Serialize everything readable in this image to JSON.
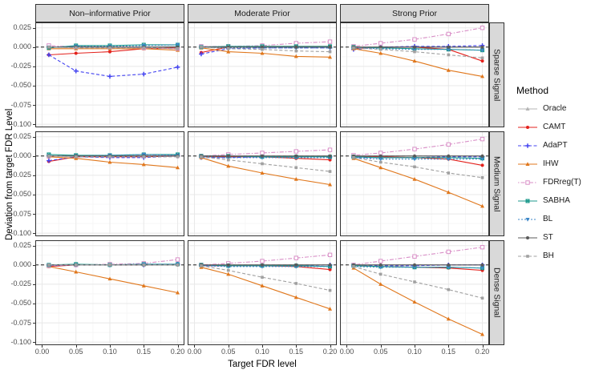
{
  "chart_data": {
    "type": "line",
    "title": "",
    "xlabel": "Target FDR level",
    "ylabel": "Deviation from target FDR Level",
    "legend_title": "Method",
    "legend_position": "right",
    "grid": true,
    "facet_cols": [
      "Non–informative Prior",
      "Moderate Prior",
      "Strong Prior"
    ],
    "facet_rows": [
      "Sparse Signal",
      "Medium Signal",
      "Dense Signal"
    ],
    "x": [
      0.01,
      0.05,
      0.1,
      0.15,
      0.2
    ],
    "xlim": [
      -0.01,
      0.21
    ],
    "ylim": [
      -0.104,
      0.032
    ],
    "x_ticks": {
      "values": [
        0.0,
        0.05,
        0.1,
        0.15,
        0.2
      ],
      "labels": [
        "0.00",
        "0.05",
        "0.10",
        "0.15",
        "0.20"
      ]
    },
    "x_minor_ticks": [
      0.025,
      0.075,
      0.125,
      0.175
    ],
    "y_ticks": {
      "values": [
        0.025,
        0.0,
        -0.025,
        -0.05,
        -0.075,
        -0.1
      ],
      "labels": [
        "0.025",
        "0.000",
        "-0.025",
        "-0.050",
        "-0.075",
        "-0.100"
      ]
    },
    "y_minor_ticks": [
      0.0125,
      -0.0125,
      -0.0375,
      -0.0625,
      -0.0875
    ],
    "reference_line_y": 0,
    "colors": {
      "strip_bg": "#d9d9d9",
      "panel_border": "#333333",
      "grid_major": "#e8e8e8",
      "grid_minor": "#f4f4f4",
      "zero_line": "#000000"
    },
    "methods": [
      {
        "name": "Oracle",
        "color": "#b5b5b5",
        "dash": "",
        "marker": "triangle"
      },
      {
        "name": "CAMT",
        "color": "#e3211c",
        "dash": "",
        "marker": "circle"
      },
      {
        "name": "AdaPT",
        "color": "#4343f0",
        "dash": "4,2.5",
        "marker": "plus"
      },
      {
        "name": "IHW",
        "color": "#e0771c",
        "dash": "",
        "marker": "triangle"
      },
      {
        "name": "FDRreg(T)",
        "color": "#d98fc7",
        "dash": "1.5,2,5,2",
        "marker": "square-open"
      },
      {
        "name": "SABHA",
        "color": "#1d9a8c",
        "dash": "",
        "marker": "square-x"
      },
      {
        "name": "BL",
        "color": "#3c87c8",
        "dash": "2,2",
        "marker": "triangle-down"
      },
      {
        "name": "ST",
        "color": "#595959",
        "dash": "",
        "marker": "circle"
      },
      {
        "name": "BH",
        "color": "#a0a0a0",
        "dash": "4,2.5",
        "marker": "square"
      }
    ],
    "panels": [
      {
        "row": 0,
        "col": 0,
        "series": {
          "Oracle": [
            0.0,
            0.001,
            0.0,
            0.0,
            0.001
          ],
          "CAMT": [
            -0.01,
            -0.008,
            -0.006,
            -0.002,
            -0.001
          ],
          "AdaPT": [
            -0.01,
            -0.031,
            -0.038,
            -0.035,
            -0.026
          ],
          "IHW": [
            -0.002,
            -0.002,
            -0.002,
            -0.002,
            -0.004
          ],
          "FDRreg(T)": [
            0.002,
            0.0,
            0.0,
            -0.001,
            -0.002
          ],
          "SABHA": [
            -0.001,
            0.002,
            0.002,
            0.003,
            0.003
          ],
          "BL": [
            0.0,
            0.001,
            0.001,
            0.002,
            0.003
          ],
          "ST": [
            0.0,
            0.0,
            0.0,
            0.0,
            0.0
          ],
          "BH": [
            0.0,
            -0.001,
            -0.001,
            -0.001,
            -0.002
          ]
        }
      },
      {
        "row": 0,
        "col": 1,
        "series": {
          "Oracle": [
            0.001,
            0.0,
            0.0,
            0.0,
            0.0
          ],
          "CAMT": [
            -0.007,
            0.0,
            0.001,
            0.001,
            0.001
          ],
          "AdaPT": [
            -0.009,
            -0.002,
            -0.001,
            -0.001,
            -0.001
          ],
          "IHW": [
            -0.001,
            -0.006,
            -0.008,
            -0.012,
            -0.013
          ],
          "FDRreg(T)": [
            0.001,
            0.001,
            0.002,
            0.005,
            0.007
          ],
          "SABHA": [
            0.0,
            0.001,
            0.001,
            0.001,
            0.001
          ],
          "BL": [
            0.0,
            -0.001,
            -0.001,
            -0.001,
            -0.001
          ],
          "ST": [
            0.0,
            0.0,
            0.0,
            0.0,
            0.0
          ],
          "BH": [
            0.0,
            -0.002,
            -0.003,
            -0.005,
            -0.006
          ]
        }
      },
      {
        "row": 0,
        "col": 2,
        "series": {
          "Oracle": [
            0.0,
            0.0,
            0.0,
            0.0,
            0.0
          ],
          "CAMT": [
            -0.002,
            0.0,
            0.0,
            -0.003,
            -0.018
          ],
          "AdaPT": [
            -0.003,
            0.0,
            0.001,
            0.001,
            0.002
          ],
          "IHW": [
            -0.002,
            -0.008,
            -0.018,
            -0.03,
            -0.038
          ],
          "FDRreg(T)": [
            0.001,
            0.005,
            0.01,
            0.017,
            0.025
          ],
          "SABHA": [
            0.0,
            -0.001,
            -0.002,
            -0.003,
            -0.004
          ],
          "BL": [
            -0.001,
            -0.002,
            -0.003,
            -0.003,
            -0.004
          ],
          "ST": [
            0.0,
            0.0,
            0.0,
            0.0,
            0.0
          ],
          "BH": [
            -0.001,
            -0.003,
            -0.006,
            -0.01,
            -0.014
          ]
        }
      },
      {
        "row": 1,
        "col": 0,
        "series": {
          "Oracle": [
            0.0,
            0.0,
            0.0,
            0.0,
            0.001
          ],
          "CAMT": [
            -0.007,
            -0.001,
            -0.001,
            -0.001,
            0.0
          ],
          "AdaPT": [
            -0.006,
            -0.001,
            -0.002,
            -0.002,
            0.0
          ],
          "IHW": [
            -0.001,
            -0.003,
            -0.008,
            -0.011,
            -0.015
          ],
          "FDRreg(T)": [
            0.0,
            0.0,
            0.0,
            0.001,
            0.001
          ],
          "SABHA": [
            0.002,
            0.001,
            0.001,
            0.002,
            0.002
          ],
          "BL": [
            0.0,
            0.0,
            0.001,
            0.002,
            0.001
          ],
          "ST": [
            0.0,
            0.0,
            0.0,
            0.0,
            0.0
          ],
          "BH": [
            0.0,
            -0.001,
            -0.001,
            -0.001,
            -0.001
          ]
        }
      },
      {
        "row": 1,
        "col": 1,
        "series": {
          "Oracle": [
            0.0,
            0.0,
            0.0,
            0.0,
            0.0
          ],
          "CAMT": [
            -0.001,
            -0.001,
            -0.001,
            -0.003,
            -0.005
          ],
          "AdaPT": [
            -0.002,
            -0.002,
            -0.001,
            -0.001,
            -0.001
          ],
          "IHW": [
            -0.002,
            -0.013,
            -0.022,
            -0.03,
            -0.037
          ],
          "FDRreg(T)": [
            0.0,
            0.002,
            0.004,
            0.006,
            0.008
          ],
          "SABHA": [
            0.0,
            0.0,
            -0.001,
            -0.001,
            -0.001
          ],
          "BL": [
            -0.001,
            -0.002,
            -0.002,
            -0.002,
            -0.002
          ],
          "ST": [
            0.0,
            0.0,
            0.0,
            0.0,
            0.0
          ],
          "BH": [
            -0.001,
            -0.005,
            -0.01,
            -0.015,
            -0.02
          ]
        }
      },
      {
        "row": 1,
        "col": 2,
        "series": {
          "Oracle": [
            0.0,
            0.0,
            0.0,
            0.0,
            0.0
          ],
          "CAMT": [
            -0.001,
            -0.001,
            -0.002,
            -0.004,
            -0.012
          ],
          "AdaPT": [
            -0.002,
            -0.002,
            -0.002,
            -0.001,
            -0.001
          ],
          "IHW": [
            -0.003,
            -0.015,
            -0.03,
            -0.047,
            -0.065
          ],
          "FDRreg(T)": [
            0.001,
            0.004,
            0.009,
            0.015,
            0.022
          ],
          "SABHA": [
            -0.001,
            -0.002,
            -0.002,
            -0.002,
            -0.003
          ],
          "BL": [
            -0.002,
            -0.004,
            -0.004,
            -0.004,
            -0.004
          ],
          "ST": [
            0.0,
            0.0,
            0.0,
            0.0,
            0.0
          ],
          "BH": [
            -0.002,
            -0.008,
            -0.014,
            -0.022,
            -0.028
          ]
        }
      },
      {
        "row": 2,
        "col": 0,
        "series": {
          "Oracle": [
            0.0,
            0.0,
            0.0,
            0.0,
            0.001
          ],
          "CAMT": [
            -0.002,
            0.0,
            0.0,
            0.0,
            0.001
          ],
          "AdaPT": [
            -0.001,
            0.0,
            0.0,
            0.0,
            0.001
          ],
          "IHW": [
            -0.002,
            -0.009,
            -0.018,
            -0.027,
            -0.036
          ],
          "FDRreg(T)": [
            -0.001,
            0.0,
            0.001,
            0.002,
            0.007
          ],
          "SABHA": [
            0.0,
            0.001,
            0.0,
            0.001,
            0.001
          ],
          "BL": [
            0.0,
            0.0,
            0.0,
            0.001,
            0.001
          ],
          "ST": [
            0.0,
            0.0,
            0.0,
            0.0,
            0.0
          ],
          "BH": [
            0.0,
            0.0,
            0.0,
            0.0,
            0.0
          ]
        }
      },
      {
        "row": 2,
        "col": 1,
        "series": {
          "Oracle": [
            0.0,
            0.0,
            0.0,
            0.0,
            0.0
          ],
          "CAMT": [
            -0.001,
            -0.001,
            -0.001,
            -0.002,
            -0.006
          ],
          "AdaPT": [
            -0.001,
            -0.001,
            -0.001,
            -0.001,
            0.0
          ],
          "IHW": [
            -0.003,
            -0.012,
            -0.027,
            -0.042,
            -0.057
          ],
          "FDRreg(T)": [
            0.0,
            0.002,
            0.005,
            0.009,
            0.013
          ],
          "SABHA": [
            0.0,
            -0.001,
            -0.001,
            -0.001,
            -0.002
          ],
          "BL": [
            -0.001,
            -0.002,
            -0.002,
            -0.002,
            -0.002
          ],
          "ST": [
            0.0,
            0.0,
            0.0,
            0.0,
            0.0
          ],
          "BH": [
            -0.001,
            -0.007,
            -0.016,
            -0.024,
            -0.033
          ]
        }
      },
      {
        "row": 2,
        "col": 2,
        "series": {
          "Oracle": [
            0.0,
            0.0,
            0.0,
            0.0,
            0.0
          ],
          "CAMT": [
            -0.001,
            -0.002,
            -0.003,
            -0.004,
            -0.007
          ],
          "AdaPT": [
            -0.001,
            -0.001,
            -0.001,
            0.0,
            0.0
          ],
          "IHW": [
            -0.004,
            -0.025,
            -0.048,
            -0.07,
            -0.09
          ],
          "FDRreg(T)": [
            0.0,
            0.005,
            0.011,
            0.017,
            0.023
          ],
          "SABHA": [
            -0.001,
            -0.002,
            -0.003,
            -0.003,
            -0.004
          ],
          "BL": [
            -0.002,
            -0.003,
            -0.003,
            -0.003,
            -0.004
          ],
          "ST": [
            0.0,
            0.0,
            0.0,
            0.0,
            0.0
          ],
          "BH": [
            -0.002,
            -0.012,
            -0.022,
            -0.032,
            -0.043
          ]
        }
      }
    ]
  }
}
